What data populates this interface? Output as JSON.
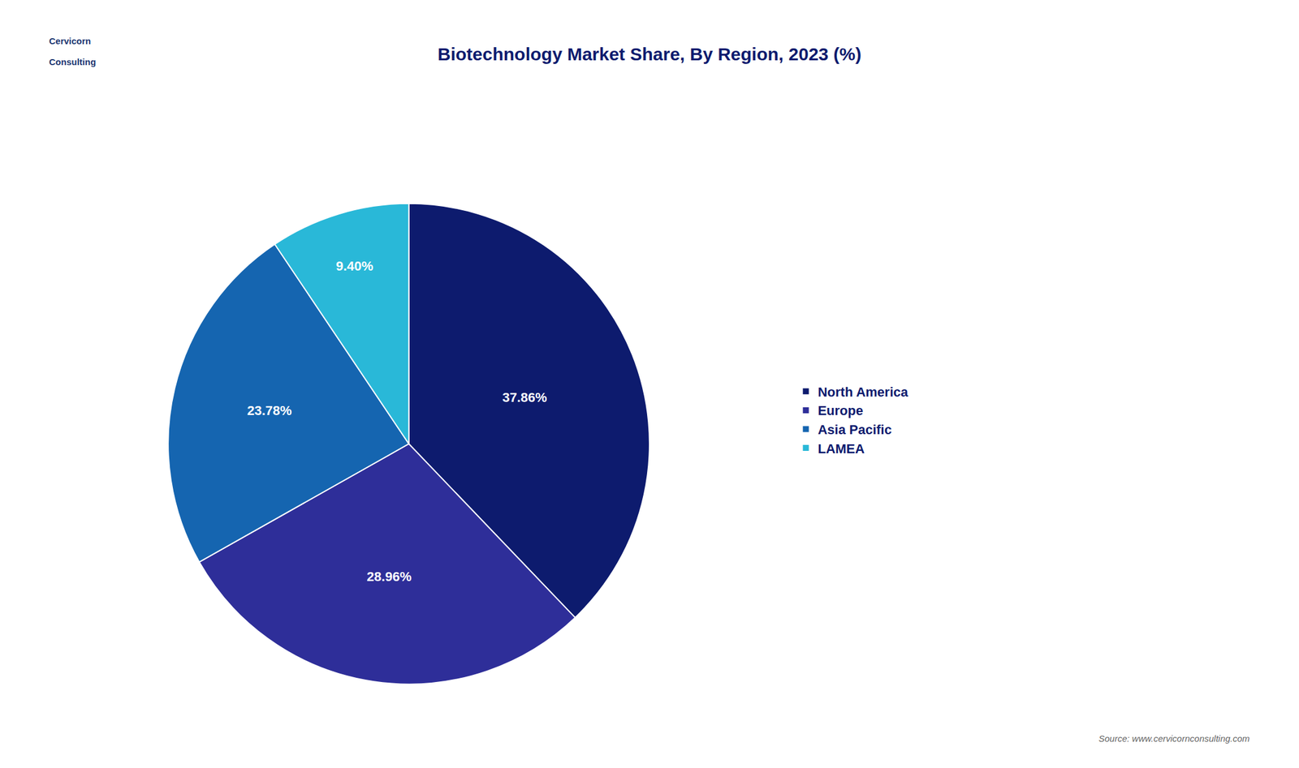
{
  "chart_data": {
    "type": "pie",
    "title": "Biotechnology Market Share, By Region, 2023 (%)",
    "categories": [
      "North America",
      "Europe",
      "Asia Pacific",
      "LAMEA"
    ],
    "values": [
      37.86,
      28.96,
      23.78,
      9.4
    ],
    "value_labels": [
      "37.86%",
      "28.96%",
      "23.78%",
      "9.40%"
    ],
    "colors": [
      "#0d1b6e",
      "#2e2e99",
      "#1565b0",
      "#29b8d8"
    ],
    "data_labels": true,
    "legend": "right",
    "annotations": [
      "Cervicorn",
      "Consulting",
      "Source: www.cervicornconsulting.com"
    ]
  }
}
